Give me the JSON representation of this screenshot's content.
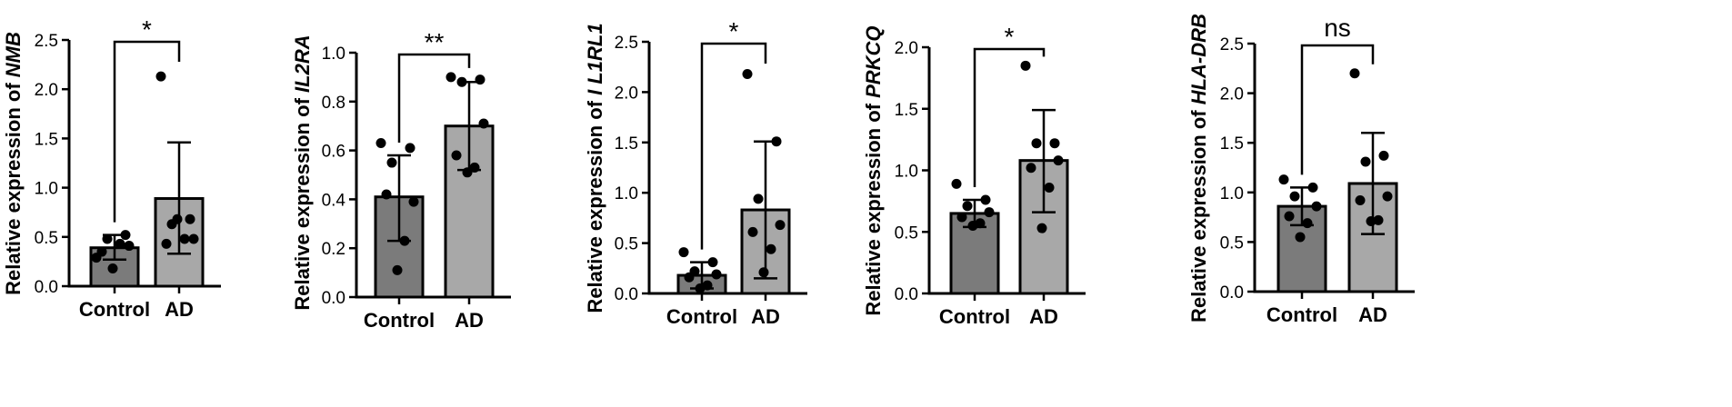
{
  "colors": {
    "control_bar": "#7b7b7b",
    "ad_bar": "#a8a8a8",
    "point": "#000000",
    "axis": "#000000"
  },
  "chart_data": [
    {
      "type": "bar",
      "categories": [
        "Control",
        "AD"
      ],
      "ylabel_prefix": "Relative expression of",
      "ylabel_gene": "NMB",
      "ylim": [
        0,
        2.5
      ],
      "yticks": [
        0.0,
        0.5,
        1.0,
        1.5,
        2.0,
        2.5
      ],
      "ytick_labels": [
        "0.0",
        "0.5",
        "1.0",
        "1.5",
        "2.0",
        "2.5"
      ],
      "means": [
        0.39,
        0.89
      ],
      "sd_upper": [
        0.52,
        1.46
      ],
      "sd_lower": [
        0.27,
        0.33
      ],
      "points": [
        [
          0.29,
          0.52,
          0.48,
          0.41,
          0.35,
          0.43,
          0.18
        ],
        [
          2.13,
          0.68,
          0.63,
          0.48,
          0.43,
          0.48,
          0.68
        ]
      ],
      "significance": "*",
      "grid": false,
      "legend": "none"
    },
    {
      "type": "bar",
      "categories": [
        "Control",
        "AD"
      ],
      "ylabel_prefix": "Relative expression of",
      "ylabel_gene": "IL2RA",
      "ylim": [
        0,
        1.0
      ],
      "yticks": [
        0.0,
        0.2,
        0.4,
        0.6,
        0.8,
        1.0
      ],
      "ytick_labels": [
        "0.0",
        "0.2",
        "0.4",
        "0.6",
        "0.8",
        "1.0"
      ],
      "means": [
        0.41,
        0.7
      ],
      "sd_upper": [
        0.58,
        0.88
      ],
      "sd_lower": [
        0.23,
        0.52
      ],
      "points": [
        [
          0.63,
          0.61,
          0.55,
          0.39,
          0.42,
          0.23,
          0.11
        ],
        [
          0.9,
          0.89,
          0.88,
          0.71,
          0.58,
          0.53,
          0.51
        ]
      ],
      "significance": "**",
      "grid": false,
      "legend": "none"
    },
    {
      "type": "bar",
      "categories": [
        "Control",
        "AD"
      ],
      "ylabel_prefix": "Relative expression of",
      "ylabel_gene": "I L1RL1",
      "ylim": [
        0,
        2.5
      ],
      "yticks": [
        0.0,
        0.5,
        1.0,
        1.5,
        2.0,
        2.5
      ],
      "ytick_labels": [
        "0.0",
        "0.5",
        "1.0",
        "1.5",
        "2.0",
        "2.5"
      ],
      "means": [
        0.18,
        0.83
      ],
      "sd_upper": [
        0.31,
        1.51
      ],
      "sd_lower": [
        0.05,
        0.15
      ],
      "points": [
        [
          0.41,
          0.31,
          0.22,
          0.19,
          0.16,
          0.08,
          0.05
        ],
        [
          2.18,
          1.51,
          0.94,
          0.68,
          0.61,
          0.44,
          0.21
        ]
      ],
      "significance": "*",
      "grid": false,
      "legend": "none"
    },
    {
      "type": "bar",
      "categories": [
        "Control",
        "AD"
      ],
      "ylabel_prefix": "Relative expression of",
      "ylabel_gene": "PRKCQ",
      "ylim": [
        0,
        2.0
      ],
      "yticks": [
        0.0,
        0.5,
        1.0,
        1.5,
        2.0
      ],
      "ytick_labels": [
        "0.0",
        "0.5",
        "1.0",
        "1.5",
        "2.0"
      ],
      "means": [
        0.65,
        1.08
      ],
      "sd_upper": [
        0.76,
        1.49
      ],
      "sd_lower": [
        0.54,
        0.66
      ],
      "points": [
        [
          0.89,
          0.76,
          0.71,
          0.66,
          0.62,
          0.57,
          0.55
        ],
        [
          1.85,
          1.22,
          1.22,
          1.08,
          1.02,
          0.86,
          0.53
        ]
      ],
      "significance": "*",
      "grid": false,
      "legend": "none"
    },
    {
      "type": "bar",
      "categories": [
        "Control",
        "AD"
      ],
      "ylabel_prefix": "Relative expression of",
      "ylabel_gene": "HLA-DRB",
      "ylim": [
        0,
        2.5
      ],
      "yticks": [
        0.0,
        0.5,
        1.0,
        1.5,
        2.0,
        2.5
      ],
      "ytick_labels": [
        "0.0",
        "0.5",
        "1.0",
        "1.5",
        "2.0",
        "2.5"
      ],
      "means": [
        0.86,
        1.09
      ],
      "sd_upper": [
        1.05,
        1.6
      ],
      "sd_lower": [
        0.67,
        0.58
      ],
      "points": [
        [
          1.13,
          1.05,
          0.96,
          0.86,
          0.76,
          0.69,
          0.55
        ],
        [
          2.2,
          1.37,
          1.31,
          0.96,
          0.92,
          0.72,
          0.71
        ]
      ],
      "significance": "ns",
      "grid": false,
      "legend": "none"
    }
  ]
}
